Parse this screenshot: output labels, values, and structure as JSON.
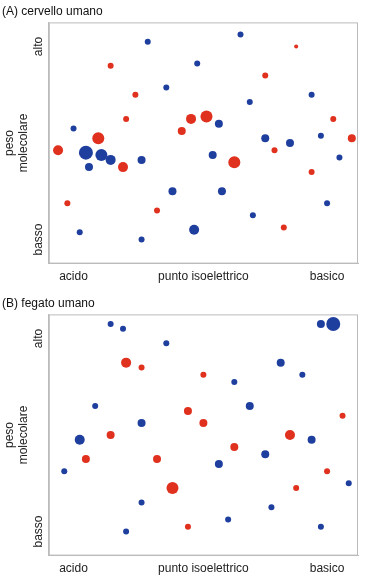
{
  "chart_data": [
    {
      "type": "bubble",
      "title": "(A) cervello umano",
      "y_label": "peso molecolare",
      "xlim": [
        0,
        100
      ],
      "ylim": [
        0,
        100
      ],
      "xticks": [
        {
          "value": 8,
          "label": "acido"
        },
        {
          "value": 50,
          "label": "punto isoelettrico"
        },
        {
          "value": 90,
          "label": "basico"
        }
      ],
      "yticks": [
        {
          "value": 10,
          "label": "basso"
        },
        {
          "value": 90,
          "label": "alto"
        }
      ],
      "grid": false,
      "x": [
        3,
        12,
        17,
        20,
        16,
        24,
        13,
        30,
        8,
        6,
        28,
        38,
        46,
        51,
        55,
        43,
        60,
        53,
        56,
        47,
        30,
        70,
        73,
        78,
        85,
        88,
        92,
        94,
        98,
        32,
        62,
        80,
        20,
        40,
        35,
        66,
        76,
        90,
        10,
        25,
        65,
        70,
        48,
        85
      ],
      "values": [
        47,
        46,
        45,
        43,
        52,
        40,
        40,
        43,
        56,
        25,
        70,
        73,
        60,
        61,
        58,
        55,
        42,
        45,
        30,
        14,
        10,
        52,
        47,
        50,
        38,
        53,
        60,
        44,
        52,
        92,
        95,
        90,
        82,
        30,
        22,
        20,
        15,
        25,
        13,
        60,
        67,
        78,
        83,
        70
      ],
      "sizes": [
        5,
        7,
        6,
        5,
        6,
        5,
        4,
        4,
        3,
        3,
        3,
        3,
        5,
        6,
        4,
        4,
        6,
        4,
        4,
        5,
        3,
        4,
        3,
        4,
        3,
        3,
        3,
        3,
        4,
        3,
        3,
        2,
        3,
        4,
        3,
        3,
        3,
        3,
        3,
        3,
        3,
        3,
        3,
        3
      ],
      "colors": [
        "#e0301e",
        "#1f3f9f",
        "#1f3f9f",
        "#1f3f9f",
        "#e0301e",
        "#e0301e",
        "#1f3f9f",
        "#1f3f9f",
        "#1f3f9f",
        "#e0301e",
        "#e0301e",
        "#1f3f9f",
        "#e0301e",
        "#e0301e",
        "#1f3f9f",
        "#e0301e",
        "#e0301e",
        "#1f3f9f",
        "#1f3f9f",
        "#1f3f9f",
        "#1f3f9f",
        "#1f3f9f",
        "#e0301e",
        "#1f3f9f",
        "#e0301e",
        "#1f3f9f",
        "#e0301e",
        "#1f3f9f",
        "#e0301e",
        "#1f3f9f",
        "#1f3f9f",
        "#e0301e",
        "#e0301e",
        "#1f3f9f",
        "#e0301e",
        "#1f3f9f",
        "#e0301e",
        "#1f3f9f",
        "#1f3f9f",
        "#e0301e",
        "#1f3f9f",
        "#e0301e",
        "#1f3f9f",
        "#1f3f9f"
      ]
    },
    {
      "type": "bubble",
      "title": "(B) fegato umano",
      "y_label": "peso molecolare",
      "xlim": [
        0,
        100
      ],
      "ylim": [
        0,
        100
      ],
      "xticks": [
        {
          "value": 8,
          "label": "acido"
        },
        {
          "value": 50,
          "label": "punto isoelettrico"
        },
        {
          "value": 90,
          "label": "basico"
        }
      ],
      "yticks": [
        {
          "value": 10,
          "label": "basso"
        },
        {
          "value": 90,
          "label": "alto"
        }
      ],
      "grid": false,
      "x": [
        92,
        88,
        20,
        24,
        25,
        30,
        75,
        82,
        60,
        45,
        50,
        30,
        20,
        10,
        12,
        5,
        35,
        40,
        55,
        60,
        70,
        78,
        85,
        95,
        90,
        72,
        58,
        25,
        45,
        88,
        15,
        65,
        50,
        38,
        97,
        30,
        80
      ],
      "values": [
        96,
        96,
        96,
        94,
        80,
        78,
        80,
        75,
        72,
        60,
        55,
        55,
        50,
        48,
        40,
        35,
        40,
        28,
        38,
        45,
        42,
        50,
        48,
        58,
        35,
        20,
        15,
        10,
        12,
        12,
        62,
        62,
        75,
        88,
        30,
        22,
        28
      ],
      "sizes": [
        7,
        4,
        3,
        3,
        5,
        3,
        4,
        3,
        3,
        4,
        4,
        4,
        4,
        5,
        4,
        3,
        4,
        6,
        4,
        4,
        4,
        5,
        4,
        3,
        3,
        3,
        3,
        3,
        3,
        3,
        3,
        4,
        3,
        3,
        3,
        3,
        3
      ],
      "colors": [
        "#1f3f9f",
        "#1f3f9f",
        "#1f3f9f",
        "#1f3f9f",
        "#e0301e",
        "#e0301e",
        "#1f3f9f",
        "#1f3f9f",
        "#1f3f9f",
        "#e0301e",
        "#e0301e",
        "#1f3f9f",
        "#e0301e",
        "#1f3f9f",
        "#e0301e",
        "#1f3f9f",
        "#e0301e",
        "#e0301e",
        "#1f3f9f",
        "#e0301e",
        "#1f3f9f",
        "#e0301e",
        "#1f3f9f",
        "#e0301e",
        "#e0301e",
        "#1f3f9f",
        "#1f3f9f",
        "#1f3f9f",
        "#e0301e",
        "#1f3f9f",
        "#1f3f9f",
        "#1f3f9f",
        "#e0301e",
        "#1f3f9f",
        "#1f3f9f",
        "#1f3f9f",
        "#e0301e"
      ]
    }
  ]
}
